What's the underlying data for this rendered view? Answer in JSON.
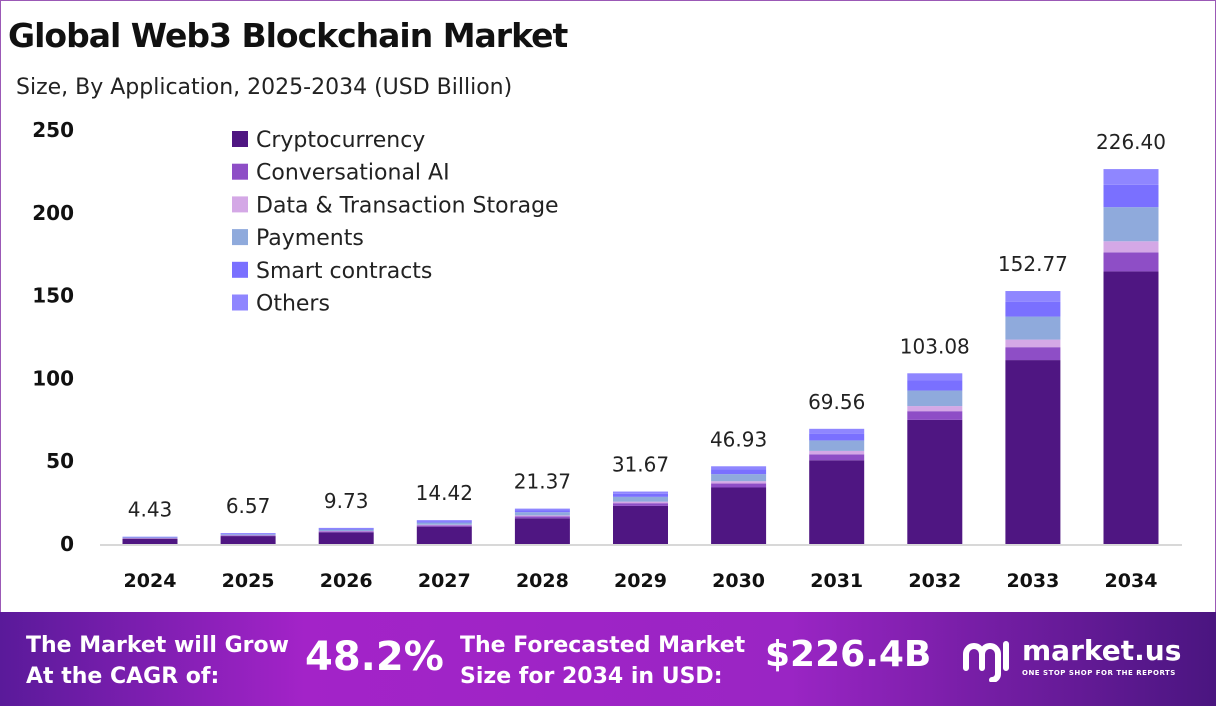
{
  "chart_data": {
    "type": "bar",
    "stacked": true,
    "title": "Global Web3 Blockchain Market",
    "subtitle": "Size, By Application, 2025-2034 (USD Billion)",
    "categories": [
      "2024",
      "2025",
      "2026",
      "2027",
      "2028",
      "2029",
      "2030",
      "2031",
      "2032",
      "2033",
      "2034"
    ],
    "totals": [
      "4.43",
      "6.57",
      "9.73",
      "14.42",
      "21.37",
      "31.67",
      "46.93",
      "69.56",
      "103.08",
      "152.77",
      "226.40"
    ],
    "series": [
      {
        "name": "Cryptocurrency",
        "color": "#4f1682",
        "values": [
          3.22,
          4.78,
          7.07,
          10.48,
          15.54,
          23.02,
          34.12,
          50.57,
          74.94,
          111.06,
          164.6
        ]
      },
      {
        "name": "Conversational AI",
        "color": "#8e4ec6",
        "values": [
          0.23,
          0.34,
          0.5,
          0.74,
          1.09,
          1.62,
          2.39,
          3.55,
          5.26,
          7.79,
          11.5
        ]
      },
      {
        "name": "Data & Transaction Storage",
        "color": "#d4a8e6",
        "values": [
          0.13,
          0.2,
          0.29,
          0.43,
          0.64,
          0.95,
          1.41,
          2.09,
          3.09,
          4.58,
          6.7
        ]
      },
      {
        "name": "Payments",
        "color": "#8faadc",
        "values": [
          0.4,
          0.6,
          0.89,
          1.31,
          1.94,
          2.88,
          4.27,
          6.33,
          9.38,
          13.9,
          20.6
        ]
      },
      {
        "name": "Smart contracts",
        "color": "#7a70ff",
        "values": [
          0.26,
          0.39,
          0.57,
          0.85,
          1.26,
          1.87,
          2.77,
          4.1,
          6.08,
          9.01,
          13.5
        ]
      },
      {
        "name": "Others",
        "color": "#8f86ff",
        "values": [
          0.19,
          0.28,
          0.41,
          0.61,
          0.9,
          1.33,
          1.97,
          2.92,
          4.33,
          6.42,
          9.5
        ]
      }
    ],
    "yticks": [
      "0",
      "50",
      "100",
      "150",
      "200",
      "250"
    ],
    "ylim": [
      0,
      250
    ],
    "grid": false,
    "legend_position": "top-left"
  },
  "footer": {
    "cagr_label_1": "The Market will Grow",
    "cagr_label_2": "At the CAGR of:",
    "cagr_value": "48.2%",
    "forecast_label_1": "The Forecasted Market",
    "forecast_label_2": "Size for 2034 in USD:",
    "forecast_value": "$226.4B",
    "logo_name": "market.us",
    "logo_tagline": "ONE STOP SHOP FOR THE REPORTS"
  }
}
